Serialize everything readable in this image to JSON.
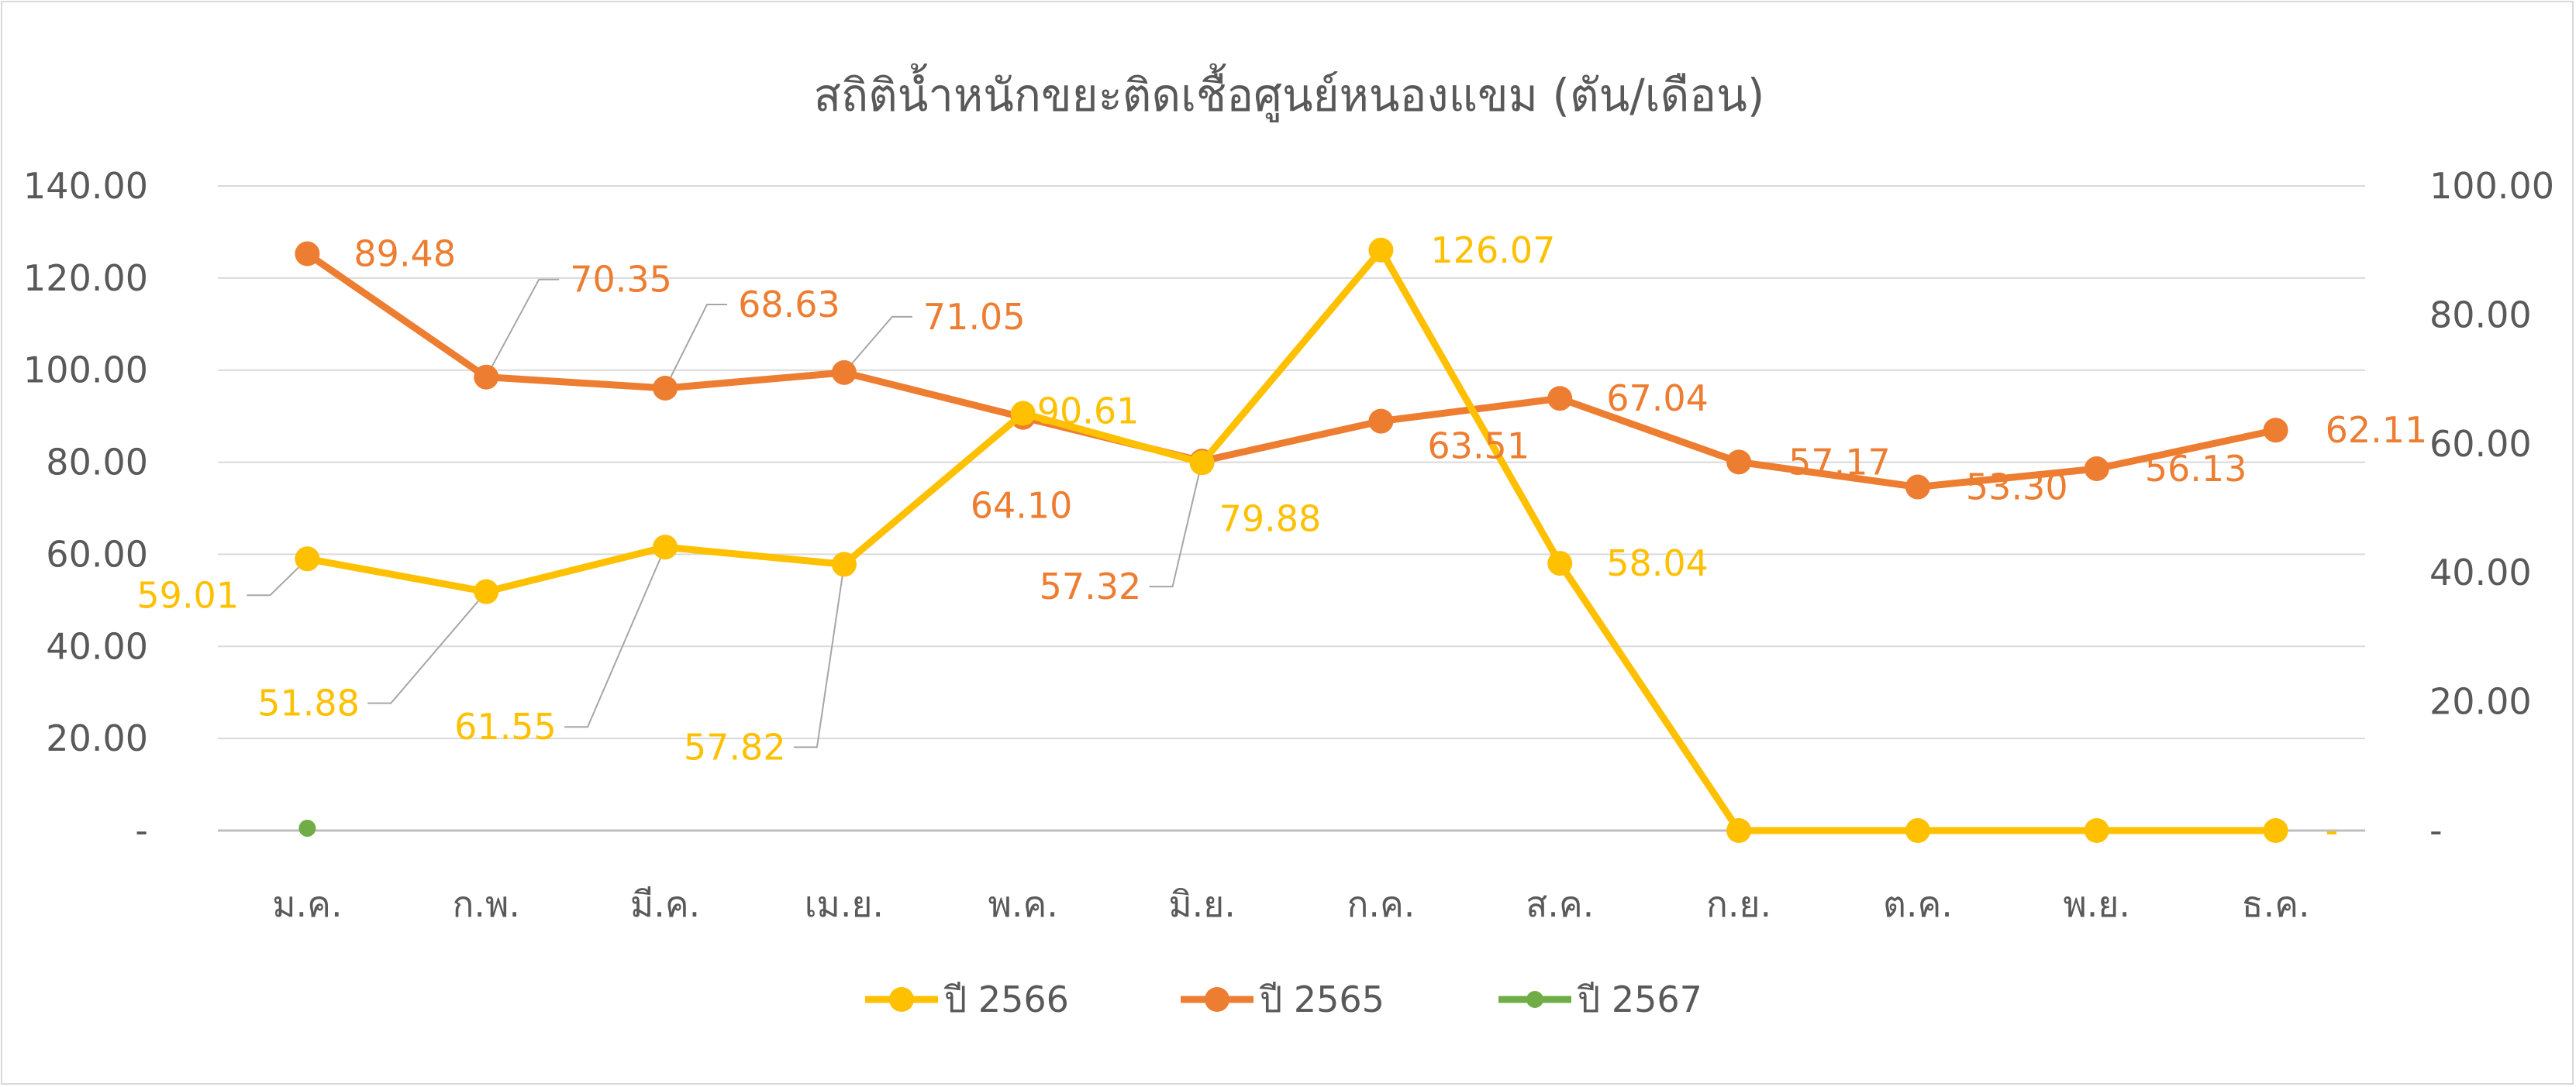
{
  "chart_data": {
    "type": "line",
    "title": "สถิติน้ำหนักขยะติดเชื้อศูนย์หนองแขม (ตัน/เดือน)",
    "categories": [
      "ม.ค.",
      "ก.พ.",
      "มี.ค.",
      "เม.ย.",
      "พ.ค.",
      "มิ.ย.",
      "ก.ค.",
      "ส.ค.",
      "ก.ย.",
      "ต.ค.",
      "พ.ย.",
      "ธ.ค."
    ],
    "left_axis": {
      "min": 0,
      "max": 140,
      "step": 20,
      "tick_labels": [
        "-",
        "20.00",
        "40.00",
        "60.00",
        "80.00",
        "100.00",
        "120.00",
        "140.00"
      ]
    },
    "right_axis": {
      "min": 0,
      "max": 100,
      "step": 20,
      "tick_labels": [
        "-",
        "20.00",
        "40.00",
        "60.00",
        "80.00",
        "100.00"
      ]
    },
    "grid": true,
    "legend_position": "bottom",
    "series": [
      {
        "name": "ปี 2566",
        "axis": "left",
        "color": "#FFC000",
        "values": [
          59.01,
          51.88,
          61.55,
          57.82,
          90.61,
          79.88,
          126.07,
          58.04,
          0,
          0,
          0,
          0
        ],
        "labels": [
          "59.01",
          "51.88",
          "61.55",
          "57.82",
          "90.61",
          "79.88",
          "126.07",
          "58.04",
          null,
          null,
          null,
          "-"
        ]
      },
      {
        "name": "ปี 2565",
        "axis": "right",
        "color": "#ED7D31",
        "values": [
          89.48,
          70.35,
          68.63,
          71.05,
          64.1,
          57.32,
          63.51,
          67.04,
          57.17,
          53.3,
          56.13,
          62.11
        ],
        "labels": [
          "89.48",
          "70.35",
          "68.63",
          "71.05",
          "64.10",
          "57.32",
          "63.51",
          "67.04",
          "57.17",
          "53.30",
          "56.13",
          "62.11"
        ]
      },
      {
        "name": "ปี 2567",
        "axis": "left",
        "color": "#70AD47",
        "values": [
          0.5,
          null,
          null,
          null,
          null,
          null,
          null,
          null,
          null,
          null,
          null,
          null
        ],
        "labels": [
          null,
          null,
          null,
          null,
          null,
          null,
          null,
          null,
          null,
          null,
          null,
          null
        ]
      }
    ]
  }
}
